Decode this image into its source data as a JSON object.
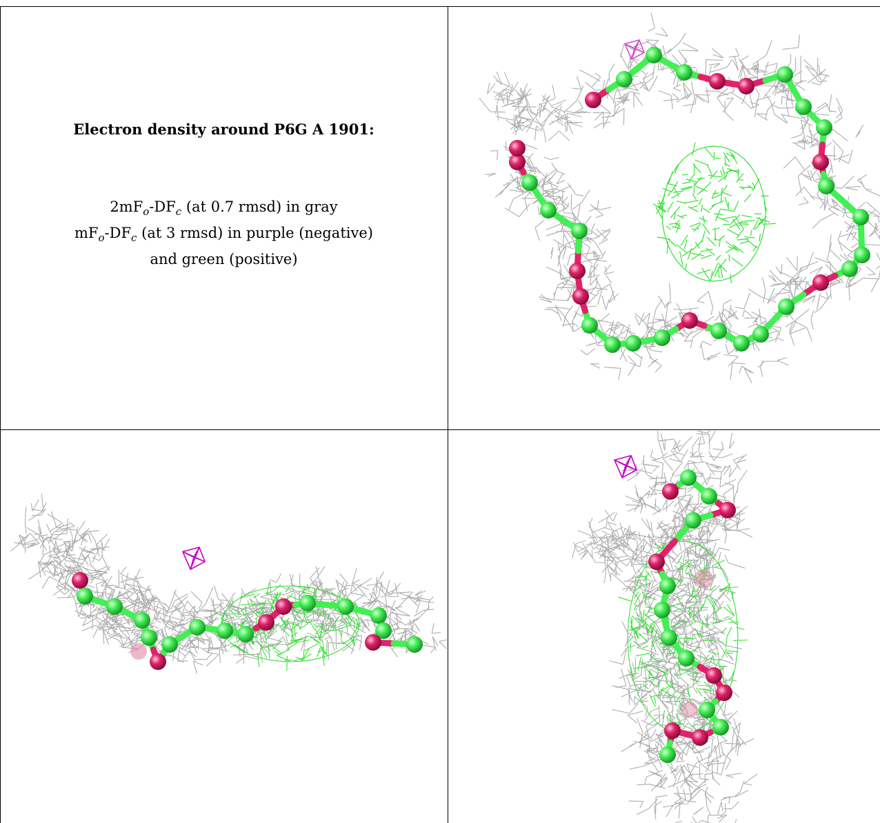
{
  "caption": {
    "title": "Electron density around P6G A 1901:",
    "line1": {
      "pre": "2mF",
      "sub1": "o",
      "mid": "-DF",
      "sub2": "c",
      "post": " (at 0.7 rmsd) in gray"
    },
    "line2": {
      "pre": "mF",
      "sub1": "o",
      "mid": "-DF",
      "sub2": "c",
      "post": " (at 3 rmsd) in purple (negative)"
    },
    "line3": "and green (positive)"
  },
  "colors": {
    "mesh_2fofc": "#a8a8a8",
    "mesh_fofc_positive": "#33e033",
    "mesh_fofc_negative": "#c400c4",
    "atom_carbon": "#44ee55",
    "atom_oxygen": "#e0226a",
    "grid_line": "#000000"
  }
}
